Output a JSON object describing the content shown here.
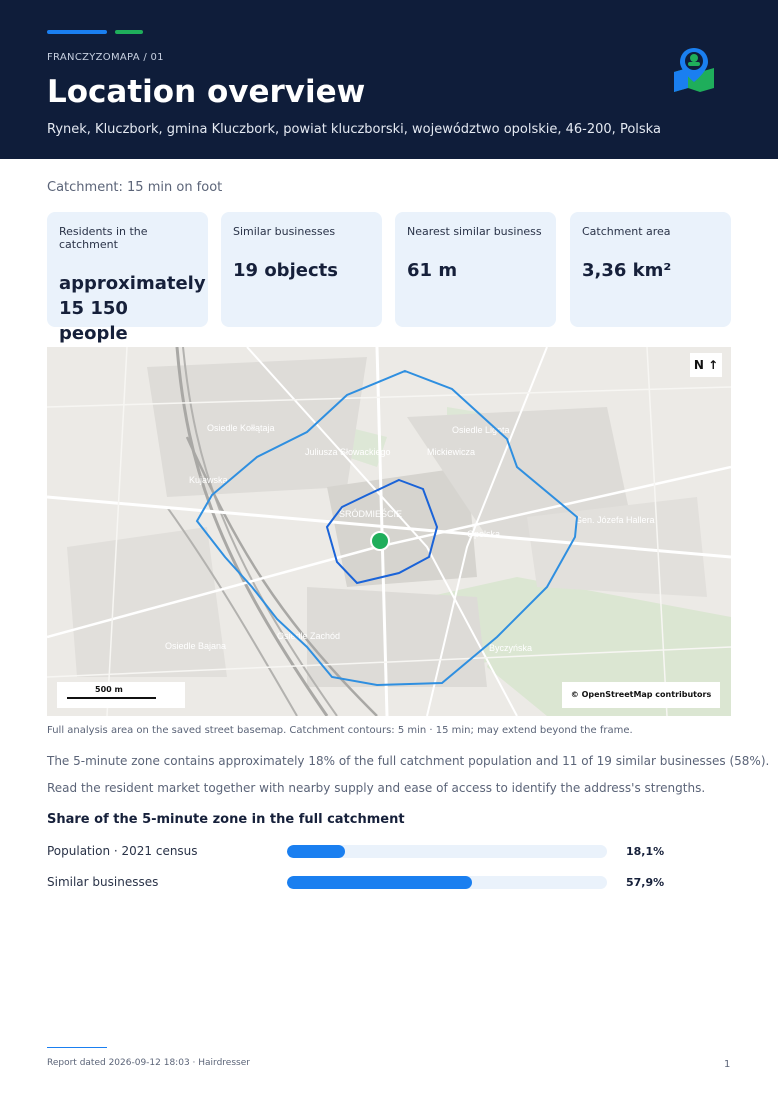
{
  "colors": {
    "accent_blue": "#1a7ff0",
    "accent_green": "#1fae5b",
    "header_bg": "#0f1d3a",
    "card_bg": "#eaf2fb",
    "contour": "#2f8fe0"
  },
  "header": {
    "kicker": "FRANCZYZOMAPA / 01",
    "title": "Location overview",
    "address": "Rynek, Kluczbork, gmina Kluczbork, powiat kluczborski, województwo opolskie, 46-200, Polska",
    "logo_icon": "map-pin-person-icon"
  },
  "catchment": "Catchment: 15 min on foot",
  "cards": [
    {
      "label": "Residents in the catchment",
      "value": "approximately 15 150 people"
    },
    {
      "label": "Similar businesses",
      "value": "19 objects"
    },
    {
      "label": "Nearest similar business",
      "value": "61 m"
    },
    {
      "label": "Catchment area",
      "value": "3,36 km²"
    }
  ],
  "map": {
    "north": "N ↑",
    "scale": "500 m",
    "attribution": "© OpenStreetMap contributors",
    "place_labels": [
      "Osiedle Kołłątaja",
      "Kujawska",
      "Juliusza Słowackiego",
      "Osiedle Ligota",
      "Mickiewicza",
      "ŚRÓDMIEŚCIE",
      "Opolska",
      "Osiedle Bajana",
      "Byczyńska",
      "Gen. Józefa Hallera",
      "Osiedle Zachód"
    ]
  },
  "map_caption": "Full analysis area on the saved street basemap. Catchment contours: 5 min · 15 min; may extend beyond the frame.",
  "paragraph1": "The 5-minute zone contains approximately 18% of the full catchment population and 11 of 19 similar businesses (58%).",
  "paragraph2": "Read the resident market together with nearby supply and ease of access to identify the address's strengths.",
  "share": {
    "title": "Share of the 5-minute zone in the full catchment",
    "rows": [
      {
        "label": "Population · 2021 census",
        "value": "18,1%",
        "fraction": 0.181
      },
      {
        "label": "Similar businesses",
        "value": "57,9%",
        "fraction": 0.579
      }
    ]
  },
  "footer": {
    "text": "Report dated 2026-09-12 18:03 · Hairdresser",
    "page": "1"
  }
}
